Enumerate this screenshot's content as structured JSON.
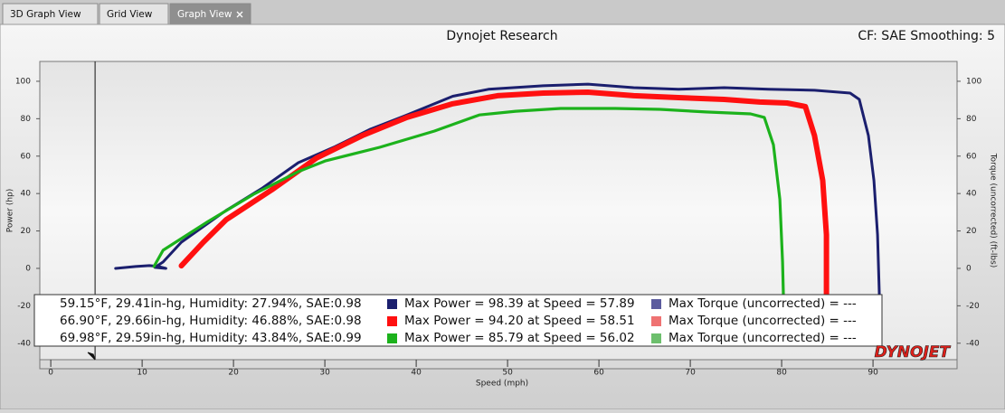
{
  "tabs": [
    {
      "label": "3D Graph View"
    },
    {
      "label": "Grid View"
    },
    {
      "label": "Graph View",
      "active": true
    }
  ],
  "chart_data": {
    "type": "line",
    "title": "Dynojet Research",
    "subtitle": "CF: SAE Smoothing: 5",
    "x_label": "Speed (mph)",
    "y_label": "Power (hp)",
    "y2_label": "Torque (uncorrected) (ft-lbs)",
    "logo": "DYNOJET",
    "grid": false,
    "cursor_x": 4.85,
    "xlim": [
      -1.2,
      99.2
    ],
    "ylim": [
      -48.8,
      110.6
    ],
    "y2lim": [
      -48.8,
      110.6
    ],
    "xticks": [
      0,
      10,
      20,
      30,
      40,
      50,
      60,
      70,
      80,
      90
    ],
    "yticks": [
      -40,
      -20,
      0,
      20,
      40,
      60,
      80,
      100
    ],
    "y2ticks": [
      -40,
      -20,
      0,
      20,
      40,
      60,
      80,
      100
    ],
    "series": [
      {
        "name": "Max Power = 98.39 at Speed = 57.89",
        "color": "#1b1f6e",
        "conditions": "59.15°F, 29.41in-hg, Humidity: 27.94%, SAE:0.98",
        "torque_label": "Max Torque (uncorrected) = ---",
        "torque_color": "#5b5b9e",
        "x": [
          7.1,
          9.3,
          10.8,
          11.8,
          12.6,
          11.4,
          12.3,
          14.3,
          19.2,
          23.2,
          27.1,
          31.1,
          35,
          39,
          44,
          47.9,
          53.9,
          58.8,
          63.8,
          68.7,
          73.7,
          78.6,
          83.6,
          87.5,
          88.5,
          89.5,
          90.1,
          90.5,
          90.7
        ],
        "values": [
          0,
          1,
          1.5,
          1,
          0,
          0.5,
          3.4,
          14,
          31,
          43,
          56.5,
          65,
          74.4,
          82,
          92,
          95.7,
          97.6,
          98.5,
          96.6,
          95.7,
          96.6,
          95.7,
          95.2,
          93.7,
          90.3,
          71,
          47,
          18,
          -16
        ]
      },
      {
        "name": "Max Power = 94.20 at Speed = 58.51",
        "color": "#ff1010",
        "conditions": "66.90°F, 29.66in-hg, Humidity: 46.88%, SAE:0.98",
        "torque_label": "Max Torque (uncorrected) = ---",
        "torque_color": "#ef7272",
        "x": [
          14.3,
          16.7,
          19.2,
          24.2,
          29.1,
          34.1,
          39,
          44,
          48.9,
          53.9,
          58.8,
          63.8,
          68.7,
          73.7,
          77.6,
          80.6,
          82.6,
          83.6,
          84.5,
          84.9,
          84.9
        ],
        "values": [
          1.4,
          14,
          26,
          42,
          59,
          71,
          80.7,
          88,
          92.3,
          93.7,
          94.2,
          92.3,
          91.3,
          90.3,
          88.9,
          88.4,
          86.5,
          71,
          47,
          18,
          -16
        ]
      },
      {
        "name": "Max Power = 85.79 at Speed = 56.02",
        "color": "#1cb21c",
        "conditions": "69.98°F, 29.59in-hg, Humidity: 43.84%, SAE:0.99",
        "torque_label": "Max Torque (uncorrected) = ---",
        "torque_color": "#6dbf6d",
        "x": [
          11.3,
          12.3,
          17.2,
          22.2,
          27.1,
          30.1,
          36,
          42,
          46.9,
          50.9,
          55.8,
          61.8,
          66.7,
          71.7,
          76.6,
          78.1,
          79.1,
          79.8,
          80.1,
          80.2
        ],
        "values": [
          1,
          9.7,
          25,
          39.6,
          51.7,
          57.5,
          64.7,
          73.4,
          82,
          84,
          85.5,
          85.5,
          85,
          83.6,
          82.6,
          80.7,
          66,
          37,
          3.4,
          -16
        ]
      }
    ]
  }
}
